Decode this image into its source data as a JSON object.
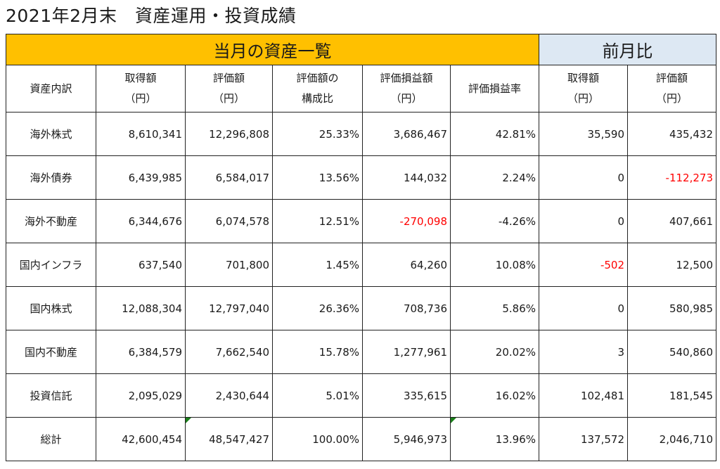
{
  "title": "2021年2月末　資産運用・投資成績",
  "band_current": "当月の資産一覧",
  "band_prev": "前月比",
  "headers": {
    "category": "資産内訳",
    "acq": [
      "取得額",
      "（円）"
    ],
    "val": [
      "評価額",
      "（円）"
    ],
    "ratio": [
      "評価額の",
      "構成比"
    ],
    "pl": [
      "評価損益額",
      "（円）"
    ],
    "plr": "評価損益率",
    "prev_acq": [
      "取得額",
      "（円）"
    ],
    "prev_val": [
      "評価額",
      "（円）"
    ]
  },
  "rows": [
    {
      "category": "海外株式",
      "acq": "8,610,341",
      "val": "12,296,808",
      "ratio": "25.33%",
      "pl": "3,686,467",
      "plr": "42.81%",
      "prev_acq": "35,590",
      "prev_val": "435,432"
    },
    {
      "category": "海外債券",
      "acq": "6,439,985",
      "val": "6,584,017",
      "ratio": "13.56%",
      "pl": "144,032",
      "plr": "2.24%",
      "prev_acq": "0",
      "prev_val": "-112,273"
    },
    {
      "category": "海外不動産",
      "acq": "6,344,676",
      "val": "6,074,578",
      "ratio": "12.51%",
      "pl": "-270,098",
      "plr": "-4.26%",
      "prev_acq": "0",
      "prev_val": "407,661"
    },
    {
      "category": "国内インフラ",
      "acq": "637,540",
      "val": "701,800",
      "ratio": "1.45%",
      "pl": "64,260",
      "plr": "10.08%",
      "prev_acq": "-502",
      "prev_val": "12,500"
    },
    {
      "category": "国内株式",
      "acq": "12,088,304",
      "val": "12,797,040",
      "ratio": "26.36%",
      "pl": "708,736",
      "plr": "5.86%",
      "prev_acq": "0",
      "prev_val": "580,985"
    },
    {
      "category": "国内不動産",
      "acq": "6,384,579",
      "val": "7,662,540",
      "ratio": "15.78%",
      "pl": "1,277,961",
      "plr": "20.02%",
      "prev_acq": "3",
      "prev_val": "540,860"
    },
    {
      "category": "投資信託",
      "acq": "2,095,029",
      "val": "2,430,644",
      "ratio": "5.01%",
      "pl": "335,615",
      "plr": "16.02%",
      "prev_acq": "102,481",
      "prev_val": "181,545"
    },
    {
      "category": "総計",
      "acq": "42,600,454",
      "val": "48,547,427",
      "ratio": "100.00%",
      "pl": "5,946,973",
      "plr": "13.96%",
      "prev_acq": "137,572",
      "prev_val": "2,046,710"
    }
  ],
  "colors": {
    "band_current": "#ffc000",
    "band_prev": "#dde8f3",
    "negative": "#ff0000",
    "comment_mark": "#1a7f1a"
  }
}
